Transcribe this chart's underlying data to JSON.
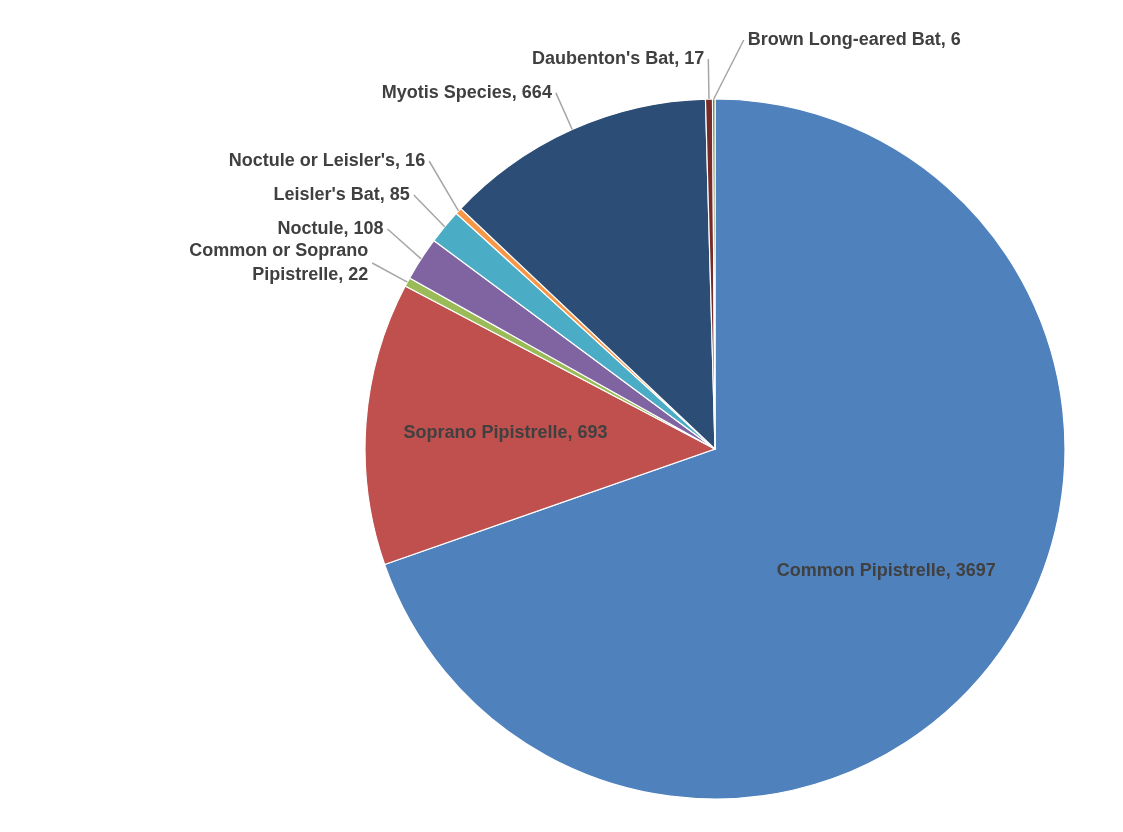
{
  "chart_data": {
    "type": "pie",
    "categories": [
      "Common Pipistrelle",
      "Soprano Pipistrelle",
      "Common or Soprano Pipistrelle",
      "Noctule",
      "Leisler's Bat",
      "Noctule or Leisler's",
      "Myotis Species",
      "Daubenton's Bat",
      "Brown Long-eared Bat"
    ],
    "values": [
      3697,
      693,
      22,
      108,
      85,
      16,
      664,
      17,
      6
    ],
    "colors": [
      "#4f81bd",
      "#c0504d",
      "#9bbb59",
      "#8064a2",
      "#4bacc6",
      "#f79646",
      "#2c4d75",
      "#772c2a",
      "#5f7530"
    ],
    "value_labels": [
      ", 3697",
      ", 693",
      ", 22",
      ", 108",
      ", 85",
      ", 16",
      ", 664",
      ", 17",
      ", 6"
    ]
  }
}
